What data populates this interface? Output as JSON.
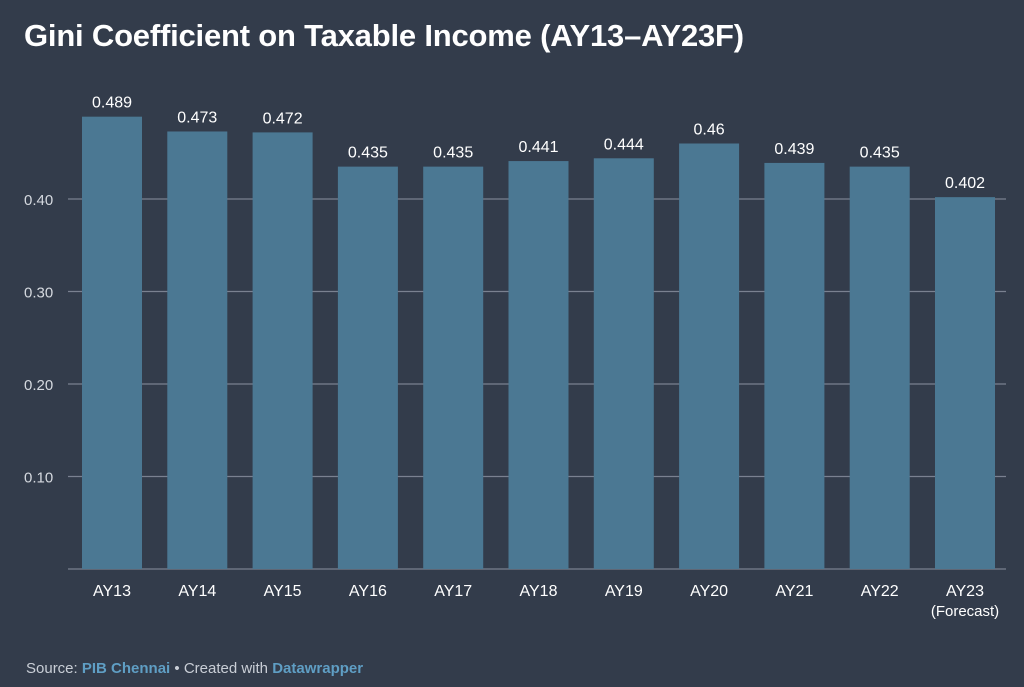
{
  "chart_data": {
    "type": "bar",
    "title": "Gini Coefficient on Taxable Income (AY13–AY23F)",
    "categories": [
      "AY13",
      "AY14",
      "AY15",
      "AY16",
      "AY17",
      "AY18",
      "AY19",
      "AY20",
      "AY21",
      "AY22",
      "AY23"
    ],
    "category_sublabels": [
      "",
      "",
      "",
      "",
      "",
      "",
      "",
      "",
      "",
      "",
      "(Forecast)"
    ],
    "values": [
      0.489,
      0.473,
      0.472,
      0.435,
      0.435,
      0.441,
      0.444,
      0.46,
      0.439,
      0.435,
      0.402
    ],
    "value_labels": [
      "0.489",
      "0.473",
      "0.472",
      "0.435",
      "0.435",
      "0.441",
      "0.444",
      "0.46",
      "0.439",
      "0.435",
      "0.402"
    ],
    "yticks": [
      0.1,
      0.2,
      0.3,
      0.4
    ],
    "ytick_labels": [
      "0.10",
      "0.20",
      "0.30",
      "0.40"
    ],
    "ylim": [
      0,
      0.5
    ],
    "xlabel": "",
    "ylabel": "",
    "grid": true,
    "colors": {
      "bar": "#4b7893",
      "background": "#333c4b",
      "grid": "#7a8190",
      "axis_text": "#d5d9df",
      "value_text": "#ffffff"
    }
  },
  "footer": {
    "prefix": "Source: ",
    "source_name": "PIB Chennai",
    "separator": " • Created with ",
    "tool_name": "Datawrapper"
  }
}
